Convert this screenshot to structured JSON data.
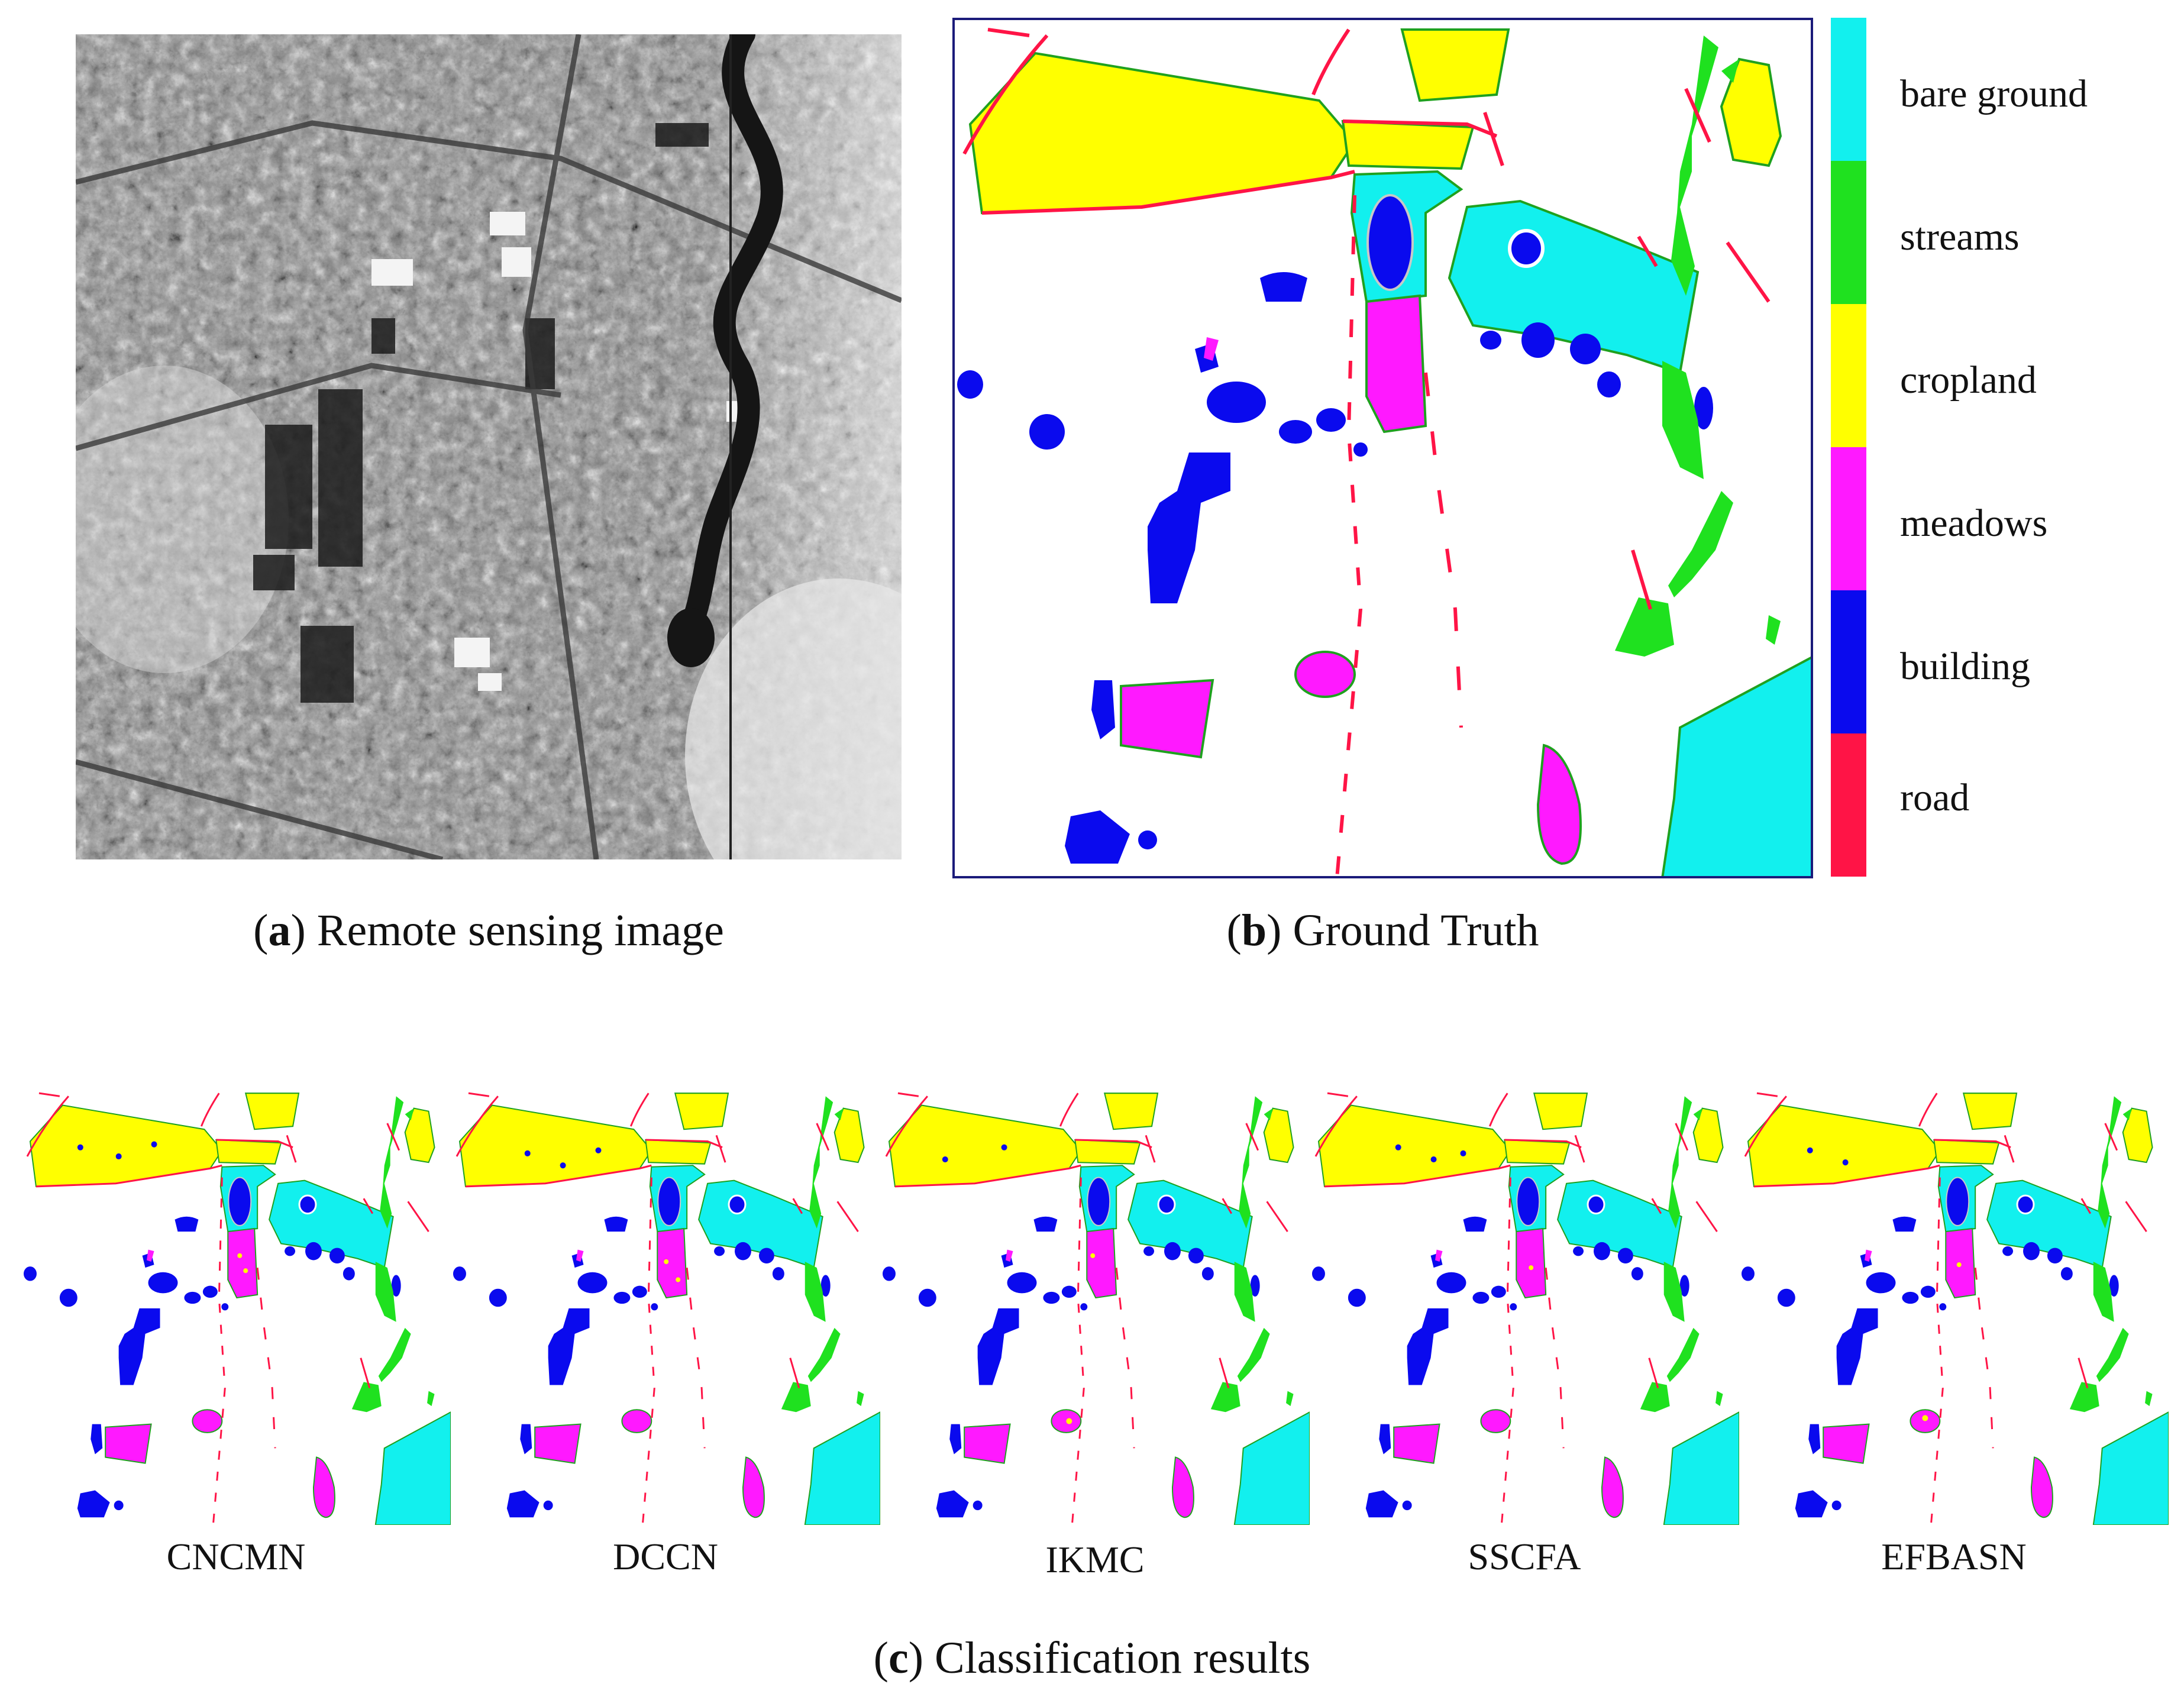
{
  "figure": {
    "panel_a": {
      "letter": "a",
      "caption": " Remote sensing image"
    },
    "panel_b": {
      "letter": "b",
      "caption": " Ground Truth"
    },
    "panel_c": {
      "letter": "c",
      "caption": " Classification results"
    }
  },
  "legend": {
    "items": [
      {
        "label": "bare ground",
        "color": "#12f0ee"
      },
      {
        "label": "streams",
        "color": "#1fe11f"
      },
      {
        "label": "cropland",
        "color": "#ffff00"
      },
      {
        "label": "meadows",
        "color": "#ff19ff"
      },
      {
        "label": "building",
        "color": "#0a0aee"
      },
      {
        "label": "road",
        "color": "#ff1446"
      }
    ]
  },
  "methods": [
    {
      "label": "CNCMN"
    },
    {
      "label": "DCCN"
    },
    {
      "label": "IKMC"
    },
    {
      "label": "SSCFA"
    },
    {
      "label": "EFBASN"
    }
  ]
}
